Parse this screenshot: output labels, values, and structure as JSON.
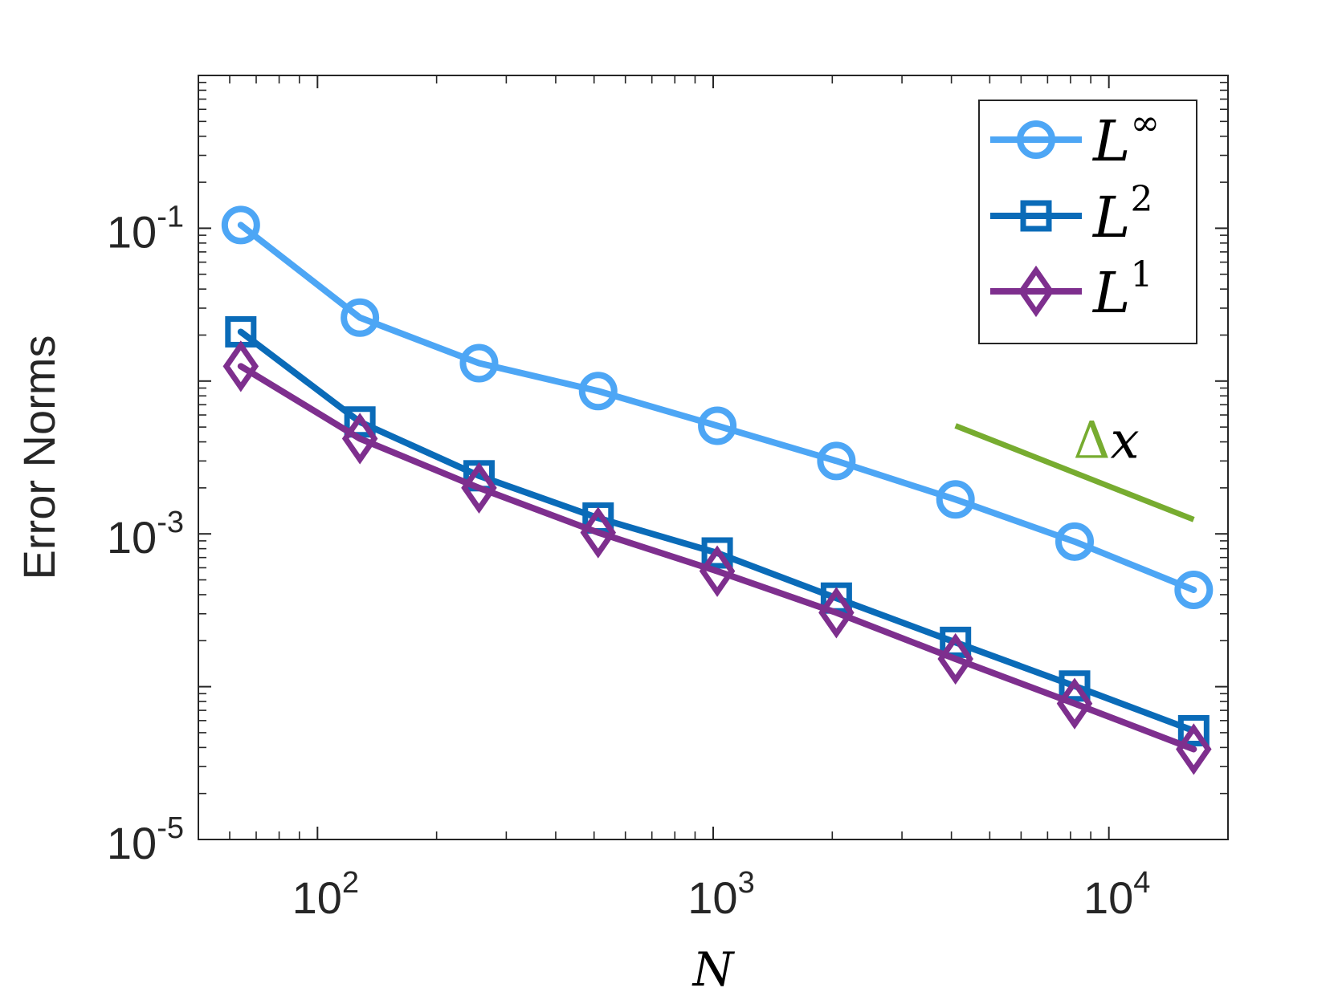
{
  "chart_data": {
    "type": "line",
    "scale": {
      "x": "log",
      "y": "log"
    },
    "xlabel": "N",
    "ylabel": "Error Norms",
    "xlim": [
      50,
      20000
    ],
    "ylim": [
      1e-05,
      1
    ],
    "x_ticks": [
      {
        "value": 100,
        "base": "10",
        "exp": "2"
      },
      {
        "value": 1000,
        "base": "10",
        "exp": "3"
      },
      {
        "value": 10000,
        "base": "10",
        "exp": "4"
      }
    ],
    "y_ticks": [
      {
        "value": 1e-05,
        "base": "10",
        "exp": "-5"
      },
      {
        "value": 0.001,
        "base": "10",
        "exp": "-3"
      },
      {
        "value": 0.1,
        "base": "10",
        "exp": "-1"
      }
    ],
    "x": [
      64,
      128,
      256,
      512,
      1024,
      2048,
      4096,
      8192,
      16384
    ],
    "series": [
      {
        "name": "L∞",
        "label_base": "L",
        "label_sup": "∞",
        "color": "#4DA6F5",
        "marker": "circle",
        "values": [
          0.105,
          0.026,
          0.0131,
          0.0086,
          0.0051,
          0.003,
          0.00168,
          0.00089,
          0.00043
        ]
      },
      {
        "name": "L2",
        "label_base": "L",
        "label_sup": "2",
        "color": "#0A6BB8",
        "marker": "square",
        "values": [
          0.021,
          0.0054,
          0.0024,
          0.00127,
          0.00075,
          0.00038,
          0.000195,
          0.000101,
          5.15e-05
        ]
      },
      {
        "name": "L1",
        "label_base": "L",
        "label_sup": "1",
        "color": "#7E2F8E",
        "marker": "diamond",
        "values": [
          0.0125,
          0.0042,
          0.002,
          0.00102,
          0.00057,
          0.000305,
          0.000152,
          7.75e-05,
          3.9e-05
        ]
      }
    ],
    "reference_line": {
      "label": "Δx",
      "label_delta": "Δ",
      "label_var": "x",
      "color": "#77AC30",
      "x": [
        4096,
        16384
      ],
      "y": [
        0.0051,
        0.00124
      ]
    },
    "legend_position": "top-right"
  }
}
